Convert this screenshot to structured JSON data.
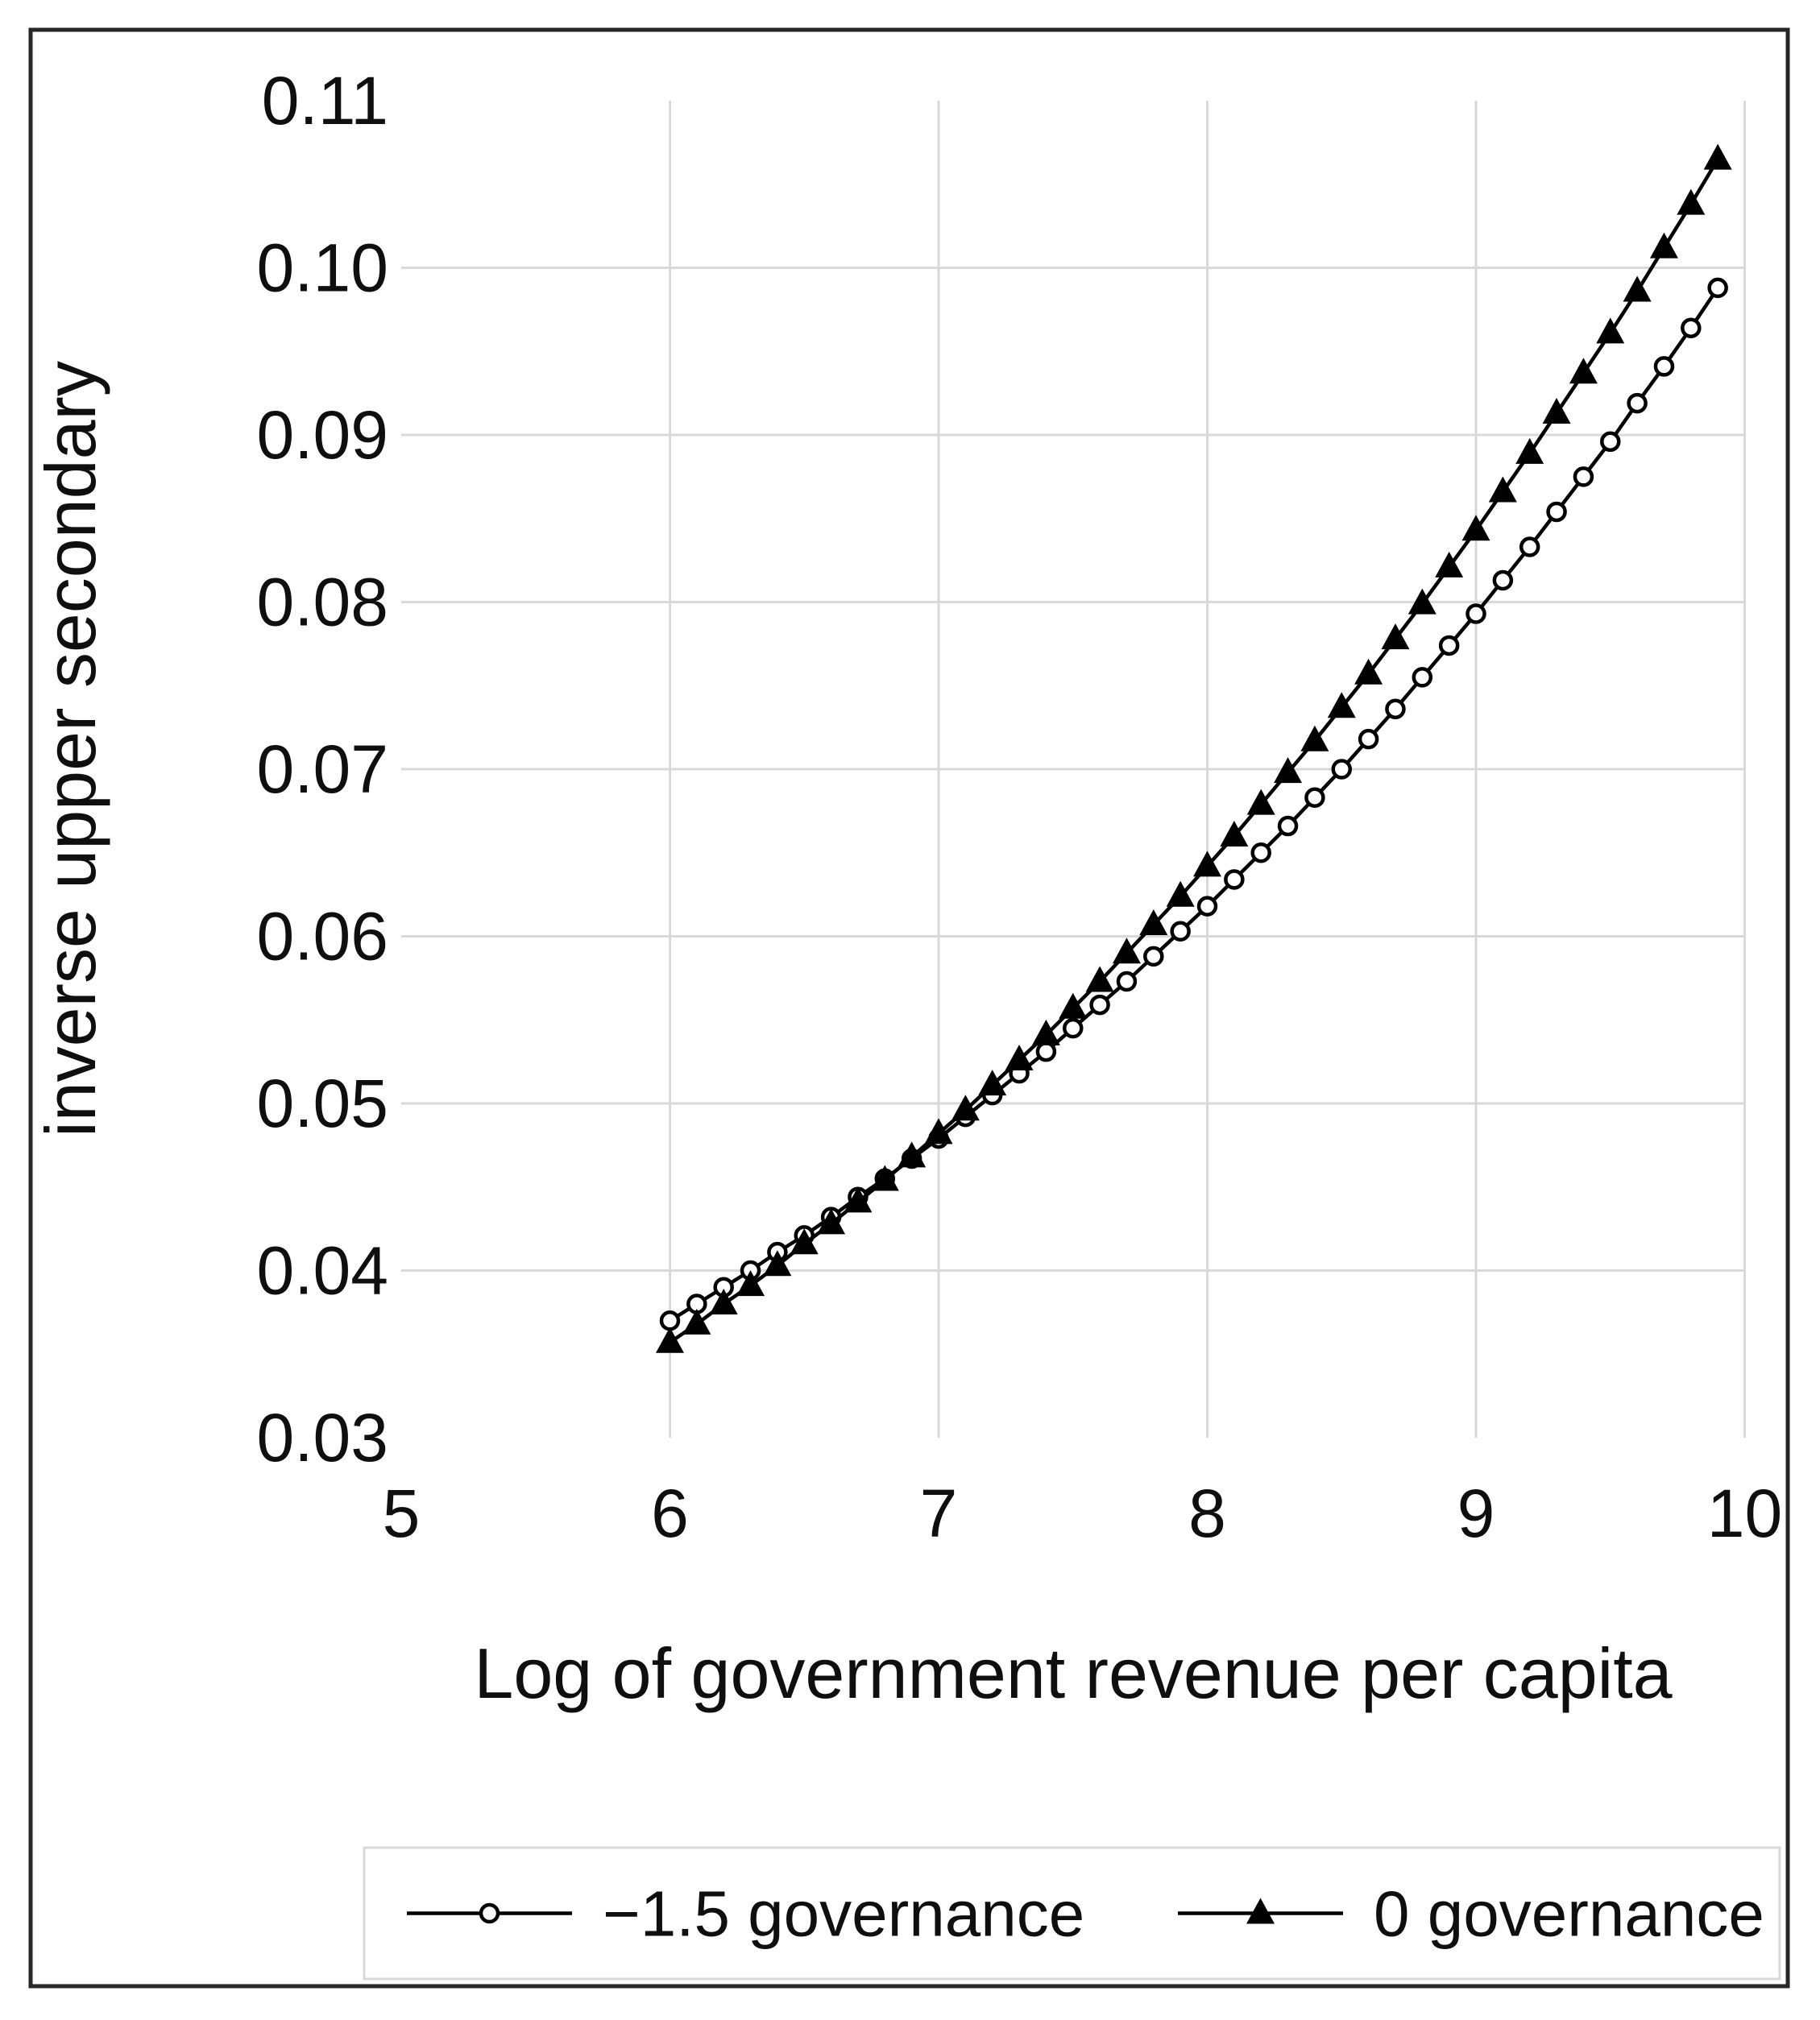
{
  "chart_data": {
    "type": "line",
    "title": "",
    "xlabel": "Log of government revenue per capita",
    "ylabel": "inverse upper secondary",
    "grid": true,
    "legend_position": "bottom",
    "xlim": [
      5,
      10.16
    ],
    "ylim": [
      0.03,
      0.11
    ],
    "x_ticks": [
      {
        "label": "5",
        "value": 5
      },
      {
        "label": "6",
        "value": 6
      },
      {
        "label": "7",
        "value": 7
      },
      {
        "label": "8",
        "value": 8
      },
      {
        "label": "9",
        "value": 9
      },
      {
        "label": "10",
        "value": 10
      }
    ],
    "y_ticks": [
      {
        "label": "0.03",
        "value": 0.03
      },
      {
        "label": "0.04",
        "value": 0.04
      },
      {
        "label": "0.05",
        "value": 0.05
      },
      {
        "label": "0.06",
        "value": 0.06
      },
      {
        "label": "0.07",
        "value": 0.07
      },
      {
        "label": "0.08",
        "value": 0.08
      },
      {
        "label": "0.09",
        "value": 0.09
      },
      {
        "label": "0.10",
        "value": 0.1
      },
      {
        "label": "0.11",
        "value": 0.11
      }
    ],
    "x_start": 6.0,
    "x_step": 0.1,
    "series": [
      {
        "name": "−1.5 governance",
        "marker": "open-circle",
        "color": "#000000",
        "values": [
          0.037,
          0.038,
          0.039,
          0.04,
          0.0411,
          0.0421,
          0.0432,
          0.0444,
          0.0455,
          0.0467,
          0.0479,
          0.0492,
          0.0505,
          0.0518,
          0.0531,
          0.0545,
          0.0559,
          0.0573,
          0.0588,
          0.0603,
          0.0618,
          0.0634,
          0.065,
          0.0666,
          0.0683,
          0.07,
          0.0718,
          0.0736,
          0.0755,
          0.0774,
          0.0793,
          0.0813,
          0.0833,
          0.0854,
          0.0875,
          0.0896,
          0.0919,
          0.0941,
          0.0964,
          0.0988
        ]
      },
      {
        "name": "0 governance",
        "marker": "filled-triangle",
        "color": "#000000",
        "values": [
          0.0357,
          0.0368,
          0.038,
          0.0391,
          0.0403,
          0.0416,
          0.0428,
          0.0441,
          0.0454,
          0.0468,
          0.0482,
          0.0496,
          0.0511,
          0.0526,
          0.0541,
          0.0557,
          0.0573,
          0.059,
          0.0607,
          0.0624,
          0.0642,
          0.066,
          0.0679,
          0.0698,
          0.0717,
          0.0737,
          0.0757,
          0.0778,
          0.0799,
          0.0821,
          0.0843,
          0.0866,
          0.0889,
          0.0913,
          0.0937,
          0.0961,
          0.0986,
          0.1012,
          0.1038,
          0.1065
        ]
      }
    ],
    "colors": {
      "background": "#ffffff",
      "chart_border": "#262626",
      "gridline": "#d9d9d9",
      "series_line": "#000000",
      "text": "#0f0f0f",
      "legend_border": "#d9d9d9"
    }
  }
}
